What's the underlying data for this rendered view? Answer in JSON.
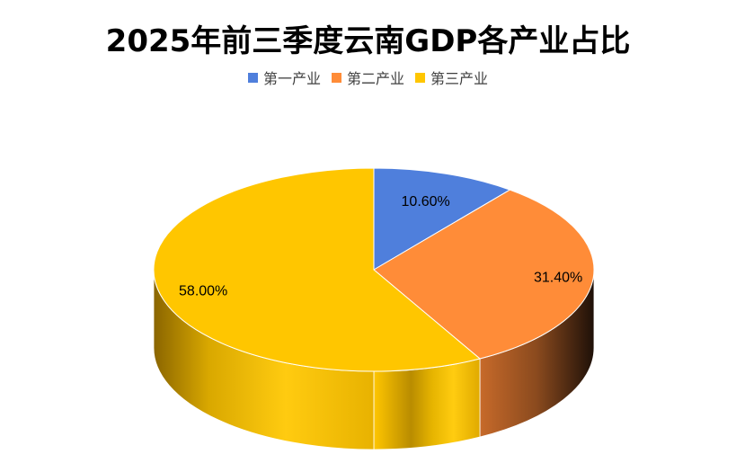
{
  "chart_data": {
    "type": "pie",
    "style": "3d",
    "title": "2025年前三季度云南GDP各产业占比",
    "categories": [
      "第一产业",
      "第二产业",
      "第三产业"
    ],
    "values": [
      10.6,
      31.4,
      58.0
    ],
    "labels": [
      "10.60%",
      "31.40%",
      "58.00%"
    ],
    "colors": [
      "#4F7FDC",
      "#FF8C38",
      "#FFC600"
    ],
    "legend_position": "top"
  }
}
